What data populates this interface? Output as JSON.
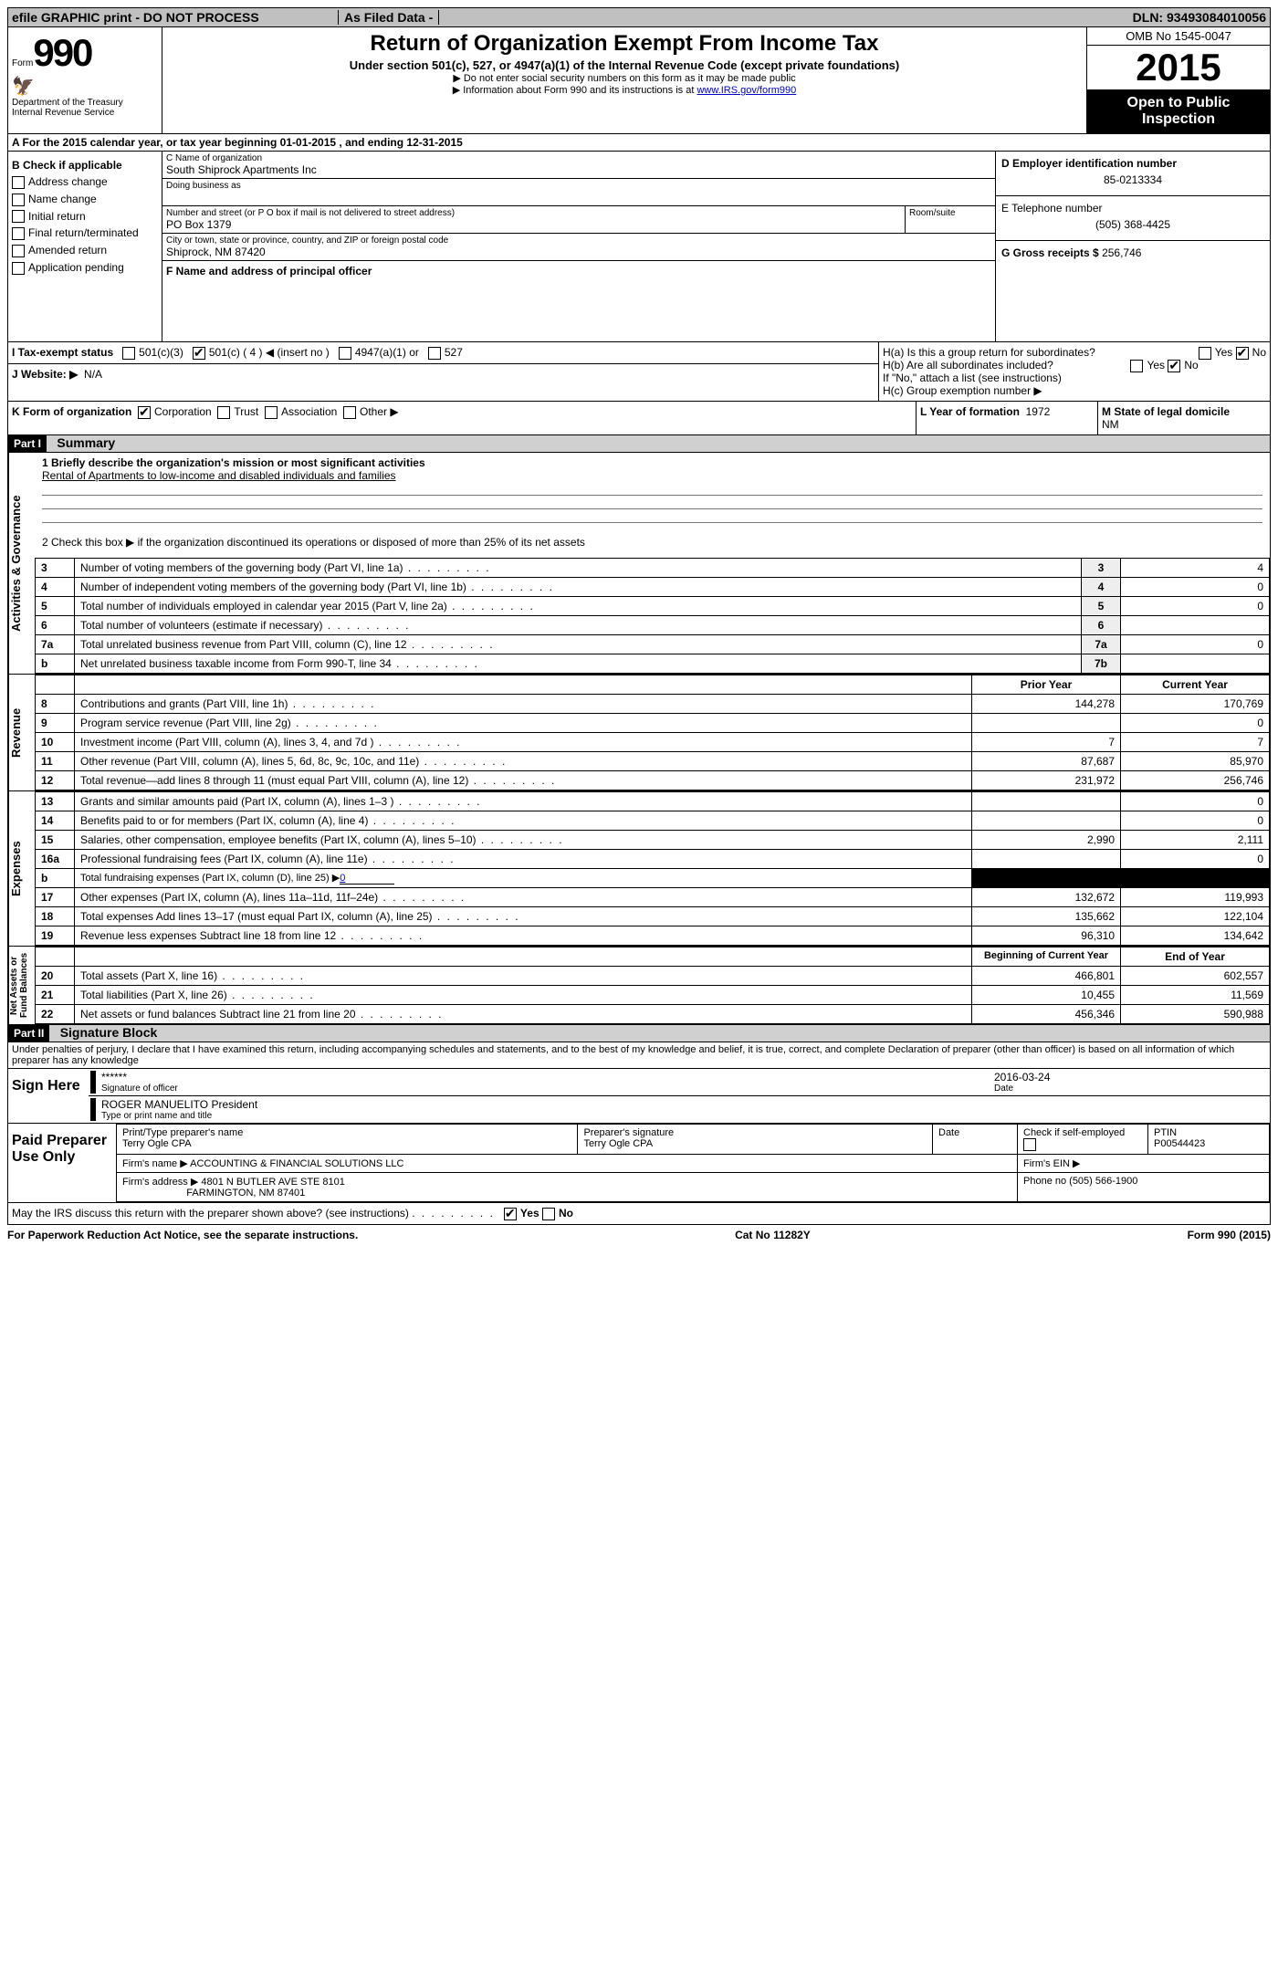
{
  "topbar": {
    "left": "efile GRAPHIC print - DO NOT PROCESS",
    "mid": "As Filed Data -",
    "right": "DLN: 93493084010056"
  },
  "header": {
    "form_prefix": "Form",
    "form_num": "990",
    "dept": "Department of the Treasury",
    "irs": "Internal Revenue Service",
    "title": "Return of Organization Exempt From Income Tax",
    "subtitle": "Under section 501(c), 527, or 4947(a)(1) of the Internal Revenue Code (except private foundations)",
    "note1": "▶ Do not enter social security numbers on this form as it may be made public",
    "note2_pre": "▶ Information about Form 990 and its instructions is at ",
    "note2_link": "www.IRS.gov/form990",
    "omb": "OMB No 1545-0047",
    "year": "2015",
    "open": "Open to Public Inspection"
  },
  "lineA": {
    "text_pre": "A  For the 2015 calendar year, or tax year beginning ",
    "begin": "01-01-2015",
    "mid": " , and ending ",
    "end": "12-31-2015"
  },
  "boxB": {
    "title": "B  Check if applicable",
    "items": [
      "Address change",
      "Name change",
      "Initial return",
      "Final return/terminated",
      "Amended return",
      "Application pending"
    ]
  },
  "boxC": {
    "label_name": "C Name of organization",
    "org": "South Shiprock Apartments Inc",
    "dba_label": "Doing business as",
    "dba": "",
    "street_label": "Number and street (or P O  box if mail is not delivered to street address)",
    "room_label": "Room/suite",
    "street": "PO Box 1379",
    "city_label": "City or town, state or province, country, and ZIP or foreign postal code",
    "city": "Shiprock, NM  87420",
    "fname_label": "F  Name and address of principal officer"
  },
  "boxD": {
    "label": "D Employer identification number",
    "val": "85-0213334"
  },
  "boxE": {
    "label": "E Telephone number",
    "val": "(505) 368-4425"
  },
  "boxG": {
    "label": "G Gross receipts $",
    "val": "256,746"
  },
  "boxH": {
    "a": "H(a)  Is this a group return for subordinates?",
    "b": "H(b)  Are all subordinates included?",
    "ifno": "If \"No,\" attach a list  (see instructions)",
    "c": "H(c)  Group exemption number ▶",
    "yes": "Yes",
    "no": "No"
  },
  "lineI": {
    "label": "I  Tax-exempt status",
    "opts": [
      "501(c)(3)",
      "501(c) ( 4 ) ◀ (insert no )",
      "4947(a)(1) or",
      "527"
    ]
  },
  "lineJ": {
    "label": "J  Website: ▶",
    "val": "N/A"
  },
  "lineK": {
    "label": "K Form of organization",
    "opts": [
      "Corporation",
      "Trust",
      "Association",
      "Other ▶"
    ]
  },
  "lineL": {
    "label": "L Year of formation",
    "val": "1972"
  },
  "lineM": {
    "label": "M State of legal domicile",
    "val": "NM"
  },
  "part1": {
    "hdr": "Part I",
    "title": "Summary"
  },
  "summary": {
    "q1": "1 Briefly describe the organization's mission or most significant activities",
    "a1": "Rental of Apartments to low-income and disabled individuals and families",
    "q2": "2  Check this box ▶      if the organization discontinued its operations or disposed of more than 25% of its net assets",
    "rows_ag": [
      {
        "n": "3",
        "t": "Number of voting members of the governing body (Part VI, line 1a)",
        "box": "3",
        "v": "4"
      },
      {
        "n": "4",
        "t": "Number of independent voting members of the governing body (Part VI, line 1b)",
        "box": "4",
        "v": "0"
      },
      {
        "n": "5",
        "t": "Total number of individuals employed in calendar year 2015 (Part V, line 2a)",
        "box": "5",
        "v": "0"
      },
      {
        "n": "6",
        "t": "Total number of volunteers (estimate if necessary)",
        "box": "6",
        "v": ""
      },
      {
        "n": "7a",
        "t": "Total unrelated business revenue from Part VIII, column (C), line 12",
        "box": "7a",
        "v": "0"
      },
      {
        "n": "b",
        "t": "Net unrelated business taxable income from Form 990-T, line 34",
        "box": "7b",
        "v": ""
      }
    ],
    "col_prior": "Prior Year",
    "col_curr": "Current Year",
    "rev": [
      {
        "n": "8",
        "t": "Contributions and grants (Part VIII, line 1h)",
        "p": "144,278",
        "c": "170,769"
      },
      {
        "n": "9",
        "t": "Program service revenue (Part VIII, line 2g)",
        "p": "",
        "c": "0"
      },
      {
        "n": "10",
        "t": "Investment income (Part VIII, column (A), lines 3, 4, and 7d )",
        "p": "7",
        "c": "7"
      },
      {
        "n": "11",
        "t": "Other revenue (Part VIII, column (A), lines 5, 6d, 8c, 9c, 10c, and 11e)",
        "p": "87,687",
        "c": "85,970"
      },
      {
        "n": "12",
        "t": "Total revenue—add lines 8 through 11 (must equal Part VIII, column (A), line 12)",
        "p": "231,972",
        "c": "256,746"
      }
    ],
    "exp": [
      {
        "n": "13",
        "t": "Grants and similar amounts paid (Part IX, column (A), lines 1–3 )",
        "p": "",
        "c": "0"
      },
      {
        "n": "14",
        "t": "Benefits paid to or for members (Part IX, column (A), line 4)",
        "p": "",
        "c": "0"
      },
      {
        "n": "15",
        "t": "Salaries, other compensation, employee benefits (Part IX, column (A), lines 5–10)",
        "p": "2,990",
        "c": "2,111"
      },
      {
        "n": "16a",
        "t": "Professional fundraising fees (Part IX, column (A), line 11e)",
        "p": "",
        "c": "0"
      },
      {
        "n": "b",
        "t": "Total fundraising expenses (Part IX, column (D), line 25) ▶",
        "p": "BLACK",
        "c": "BLACK",
        "extra": "0"
      },
      {
        "n": "17",
        "t": "Other expenses (Part IX, column (A), lines 11a–11d, 11f–24e)",
        "p": "132,672",
        "c": "119,993"
      },
      {
        "n": "18",
        "t": "Total expenses  Add lines 13–17 (must equal Part IX, column (A), line 25)",
        "p": "135,662",
        "c": "122,104"
      },
      {
        "n": "19",
        "t": "Revenue less expenses  Subtract line 18 from line 12",
        "p": "96,310",
        "c": "134,642"
      }
    ],
    "col_beg": "Beginning of Current Year",
    "col_end": "End of Year",
    "net": [
      {
        "n": "20",
        "t": "Total assets (Part X, line 16)",
        "p": "466,801",
        "c": "602,557"
      },
      {
        "n": "21",
        "t": "Total liabilities (Part X, line 26)",
        "p": "10,455",
        "c": "11,569"
      },
      {
        "n": "22",
        "t": "Net assets or fund balances  Subtract line 21 from line 20",
        "p": "456,346",
        "c": "590,988"
      }
    ]
  },
  "part2": {
    "hdr": "Part II",
    "title": "Signature Block",
    "decl": "Under penalties of perjury, I declare that I have examined this return, including accompanying schedules and statements, and to the best of my knowledge and belief, it is true, correct, and complete  Declaration of preparer (other than officer) is based on all information of which preparer has any knowledge"
  },
  "sign": {
    "here": "Sign Here",
    "stars": "******",
    "sig_of": "Signature of officer",
    "date_lbl": "Date",
    "date": "2016-03-24",
    "name": "ROGER MANUELITO President",
    "type_lbl": "Type or print name and title"
  },
  "prep": {
    "label": "Paid Preparer Use Only",
    "pt_name_lbl": "Print/Type preparer's name",
    "pt_name": "Terry Ogle CPA",
    "pt_sig_lbl": "Preparer's signature",
    "pt_sig": "Terry Ogle CPA",
    "date_lbl": "Date",
    "check_lbl": "Check        if self-employed",
    "ptin_lbl": "PTIN",
    "ptin": "P00544423",
    "firm_name_lbl": "Firm's name   ▶",
    "firm_name": "ACCOUNTING & FINANCIAL SOLUTIONS LLC",
    "firm_ein_lbl": "Firm's EIN ▶",
    "firm_addr_lbl": "Firm's address ▶",
    "firm_addr1": "4801 N BUTLER AVE STE 8101",
    "firm_addr2": "FARMINGTON, NM  87401",
    "phone_lbl": "Phone no  (505) 566-1900"
  },
  "may": "May the IRS discuss this return with the preparer shown above? (see instructions)",
  "footer": {
    "left": "For Paperwork Reduction Act Notice, see the separate instructions.",
    "mid": "Cat No  11282Y",
    "right": "Form 990 (2015)"
  }
}
